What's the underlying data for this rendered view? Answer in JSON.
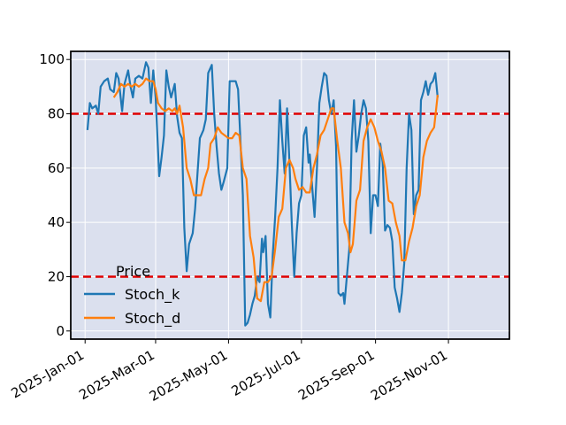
{
  "chart_data": {
    "type": "line",
    "title": "",
    "xlabel": "",
    "ylabel": "",
    "x_ticks": [
      "2025-Jan-01",
      "2025-Mar-01",
      "2025-May-01",
      "2025-Jul-01",
      "2025-Sep-01",
      "2025-Nov-01"
    ],
    "x_tick_dates": [
      "2025-01-01",
      "2025-03-01",
      "2025-05-01",
      "2025-07-01",
      "2025-09-01",
      "2025-11-01"
    ],
    "xlim": [
      "2024-12-20",
      "2025-12-22"
    ],
    "ylim": [
      -3,
      103
    ],
    "y_ticks": [
      0,
      20,
      40,
      60,
      80,
      100
    ],
    "grid": true,
    "legend": {
      "title": "Price",
      "placement": "lower-left"
    },
    "hlines": [
      {
        "value": 80,
        "color": "#e00000",
        "style": "dashed"
      },
      {
        "value": 20,
        "color": "#e00000",
        "style": "dashed"
      }
    ],
    "series": [
      {
        "name": "Stoch_k",
        "color": "#1f77b4",
        "points": [
          [
            "2025-01-03",
            74
          ],
          [
            "2025-01-05",
            84
          ],
          [
            "2025-01-07",
            82
          ],
          [
            "2025-01-10",
            83
          ],
          [
            "2025-01-12",
            80
          ],
          [
            "2025-01-14",
            90
          ],
          [
            "2025-01-17",
            92
          ],
          [
            "2025-01-20",
            93
          ],
          [
            "2025-01-22",
            89
          ],
          [
            "2025-01-25",
            88
          ],
          [
            "2025-01-27",
            95
          ],
          [
            "2025-01-29",
            93
          ],
          [
            "2025-02-01",
            81
          ],
          [
            "2025-02-03",
            91
          ],
          [
            "2025-02-06",
            96
          ],
          [
            "2025-02-08",
            90
          ],
          [
            "2025-02-10",
            86
          ],
          [
            "2025-02-12",
            93
          ],
          [
            "2025-02-15",
            94
          ],
          [
            "2025-02-18",
            93
          ],
          [
            "2025-02-21",
            99
          ],
          [
            "2025-02-23",
            97
          ],
          [
            "2025-02-25",
            84
          ],
          [
            "2025-02-27",
            96
          ],
          [
            "2025-03-01",
            86
          ],
          [
            "2025-03-04",
            57
          ],
          [
            "2025-03-06",
            64
          ],
          [
            "2025-03-08",
            72
          ],
          [
            "2025-03-10",
            96
          ],
          [
            "2025-03-12",
            90
          ],
          [
            "2025-03-14",
            86
          ],
          [
            "2025-03-17",
            91
          ],
          [
            "2025-03-19",
            79
          ],
          [
            "2025-03-21",
            73
          ],
          [
            "2025-03-23",
            71
          ],
          [
            "2025-03-25",
            38
          ],
          [
            "2025-03-27",
            22
          ],
          [
            "2025-03-29",
            32
          ],
          [
            "2025-04-01",
            36
          ],
          [
            "2025-04-03",
            45
          ],
          [
            "2025-04-05",
            58
          ],
          [
            "2025-04-07",
            71
          ],
          [
            "2025-04-10",
            74
          ],
          [
            "2025-04-12",
            78
          ],
          [
            "2025-04-14",
            95
          ],
          [
            "2025-04-17",
            98
          ],
          [
            "2025-04-19",
            80
          ],
          [
            "2025-04-21",
            68
          ],
          [
            "2025-04-23",
            58
          ],
          [
            "2025-04-25",
            52
          ],
          [
            "2025-04-27",
            55
          ],
          [
            "2025-04-30",
            60
          ],
          [
            "2025-05-02",
            92
          ],
          [
            "2025-05-05",
            92
          ],
          [
            "2025-05-07",
            92
          ],
          [
            "2025-05-09",
            89
          ],
          [
            "2025-05-11",
            70
          ],
          [
            "2025-05-13",
            50
          ],
          [
            "2025-05-15",
            2
          ],
          [
            "2025-05-17",
            3
          ],
          [
            "2025-05-19",
            6
          ],
          [
            "2025-05-21",
            10
          ],
          [
            "2025-05-23",
            13
          ],
          [
            "2025-05-25",
            20
          ],
          [
            "2025-05-27",
            18
          ],
          [
            "2025-05-29",
            34
          ],
          [
            "2025-05-30",
            29
          ],
          [
            "2025-06-01",
            35
          ],
          [
            "2025-06-03",
            10
          ],
          [
            "2025-06-05",
            5
          ],
          [
            "2025-06-07",
            28
          ],
          [
            "2025-06-09",
            42
          ],
          [
            "2025-06-11",
            60
          ],
          [
            "2025-06-13",
            85
          ],
          [
            "2025-06-15",
            70
          ],
          [
            "2025-06-17",
            58
          ],
          [
            "2025-06-19",
            82
          ],
          [
            "2025-06-21",
            62
          ],
          [
            "2025-06-23",
            39
          ],
          [
            "2025-06-25",
            20
          ],
          [
            "2025-06-27",
            36
          ],
          [
            "2025-06-29",
            47
          ],
          [
            "2025-07-01",
            50
          ],
          [
            "2025-07-03",
            72
          ],
          [
            "2025-07-05",
            75
          ],
          [
            "2025-07-07",
            62
          ],
          [
            "2025-07-08",
            65
          ],
          [
            "2025-07-10",
            53
          ],
          [
            "2025-07-12",
            42
          ],
          [
            "2025-07-14",
            60
          ],
          [
            "2025-07-16",
            84
          ],
          [
            "2025-07-18",
            90
          ],
          [
            "2025-07-20",
            95
          ],
          [
            "2025-07-22",
            94
          ],
          [
            "2025-07-24",
            85
          ],
          [
            "2025-07-26",
            80
          ],
          [
            "2025-07-28",
            85
          ],
          [
            "2025-07-30",
            68
          ],
          [
            "2025-08-01",
            14
          ],
          [
            "2025-08-03",
            13
          ],
          [
            "2025-08-05",
            14
          ],
          [
            "2025-08-06",
            10
          ],
          [
            "2025-08-08",
            20
          ],
          [
            "2025-08-10",
            30
          ],
          [
            "2025-08-12",
            70
          ],
          [
            "2025-08-14",
            85
          ],
          [
            "2025-08-16",
            66
          ],
          [
            "2025-08-18",
            72
          ],
          [
            "2025-08-20",
            80
          ],
          [
            "2025-08-22",
            85
          ],
          [
            "2025-08-24",
            82
          ],
          [
            "2025-08-26",
            70
          ],
          [
            "2025-08-28",
            36
          ],
          [
            "2025-08-30",
            50
          ],
          [
            "2025-09-01",
            50
          ],
          [
            "2025-09-03",
            46
          ],
          [
            "2025-09-05",
            69
          ],
          [
            "2025-09-07",
            62
          ],
          [
            "2025-09-09",
            37
          ],
          [
            "2025-09-11",
            39
          ],
          [
            "2025-09-13",
            38
          ],
          [
            "2025-09-15",
            33
          ],
          [
            "2025-09-17",
            16
          ],
          [
            "2025-09-19",
            12
          ],
          [
            "2025-09-21",
            7
          ],
          [
            "2025-09-23",
            14
          ],
          [
            "2025-09-25",
            25
          ],
          [
            "2025-09-27",
            60
          ],
          [
            "2025-09-29",
            80
          ],
          [
            "2025-10-01",
            74
          ],
          [
            "2025-10-03",
            43
          ],
          [
            "2025-10-05",
            50
          ],
          [
            "2025-10-07",
            52
          ],
          [
            "2025-10-09",
            85
          ],
          [
            "2025-10-11",
            88
          ],
          [
            "2025-10-13",
            92
          ],
          [
            "2025-10-15",
            87
          ],
          [
            "2025-10-17",
            91
          ],
          [
            "2025-10-19",
            92
          ],
          [
            "2025-10-21",
            95
          ],
          [
            "2025-10-23",
            86
          ]
        ]
      },
      {
        "name": "Stoch_d",
        "color": "#ff7f0e",
        "points": [
          [
            "2025-01-25",
            86
          ],
          [
            "2025-01-28",
            88
          ],
          [
            "2025-01-31",
            91
          ],
          [
            "2025-02-03",
            90
          ],
          [
            "2025-02-06",
            91
          ],
          [
            "2025-02-09",
            90
          ],
          [
            "2025-02-12",
            91
          ],
          [
            "2025-02-15",
            90
          ],
          [
            "2025-02-18",
            91
          ],
          [
            "2025-02-21",
            93
          ],
          [
            "2025-02-24",
            92
          ],
          [
            "2025-02-27",
            92
          ],
          [
            "2025-03-01",
            89
          ],
          [
            "2025-03-03",
            84
          ],
          [
            "2025-03-06",
            82
          ],
          [
            "2025-03-09",
            81
          ],
          [
            "2025-03-12",
            82
          ],
          [
            "2025-03-15",
            81
          ],
          [
            "2025-03-17",
            82
          ],
          [
            "2025-03-19",
            80
          ],
          [
            "2025-03-21",
            83
          ],
          [
            "2025-03-24",
            75
          ],
          [
            "2025-03-27",
            60
          ],
          [
            "2025-03-30",
            56
          ],
          [
            "2025-04-02",
            50
          ],
          [
            "2025-04-05",
            50
          ],
          [
            "2025-04-08",
            50
          ],
          [
            "2025-04-11",
            56
          ],
          [
            "2025-04-14",
            60
          ],
          [
            "2025-04-16",
            69
          ],
          [
            "2025-04-19",
            71
          ],
          [
            "2025-04-22",
            75
          ],
          [
            "2025-04-25",
            73
          ],
          [
            "2025-04-28",
            72
          ],
          [
            "2025-05-01",
            71
          ],
          [
            "2025-05-04",
            71
          ],
          [
            "2025-05-07",
            73
          ],
          [
            "2025-05-10",
            72
          ],
          [
            "2025-05-13",
            60
          ],
          [
            "2025-05-16",
            56
          ],
          [
            "2025-05-19",
            35
          ],
          [
            "2025-05-22",
            27
          ],
          [
            "2025-05-25",
            12
          ],
          [
            "2025-05-28",
            11
          ],
          [
            "2025-05-31",
            18
          ],
          [
            "2025-06-03",
            18
          ],
          [
            "2025-06-06",
            20
          ],
          [
            "2025-06-09",
            30
          ],
          [
            "2025-06-12",
            42
          ],
          [
            "2025-06-15",
            45
          ],
          [
            "2025-06-18",
            60
          ],
          [
            "2025-06-21",
            63
          ],
          [
            "2025-06-24",
            60
          ],
          [
            "2025-06-26",
            56
          ],
          [
            "2025-06-29",
            52
          ],
          [
            "2025-07-02",
            53
          ],
          [
            "2025-07-05",
            51
          ],
          [
            "2025-07-08",
            51
          ],
          [
            "2025-07-11",
            60
          ],
          [
            "2025-07-14",
            65
          ],
          [
            "2025-07-17",
            72
          ],
          [
            "2025-07-20",
            74
          ],
          [
            "2025-07-23",
            78
          ],
          [
            "2025-07-26",
            82
          ],
          [
            "2025-07-28",
            82
          ],
          [
            "2025-07-31",
            70
          ],
          [
            "2025-08-03",
            60
          ],
          [
            "2025-08-06",
            40
          ],
          [
            "2025-08-09",
            36
          ],
          [
            "2025-08-11",
            29
          ],
          [
            "2025-08-13",
            32
          ],
          [
            "2025-08-16",
            48
          ],
          [
            "2025-08-19",
            52
          ],
          [
            "2025-08-22",
            70
          ],
          [
            "2025-08-25",
            75
          ],
          [
            "2025-08-28",
            78
          ],
          [
            "2025-08-31",
            75
          ],
          [
            "2025-09-03",
            70
          ],
          [
            "2025-09-06",
            66
          ],
          [
            "2025-09-09",
            60
          ],
          [
            "2025-09-12",
            48
          ],
          [
            "2025-09-15",
            47
          ],
          [
            "2025-09-18",
            40
          ],
          [
            "2025-09-21",
            35
          ],
          [
            "2025-09-23",
            26
          ],
          [
            "2025-09-26",
            26
          ],
          [
            "2025-09-29",
            33
          ],
          [
            "2025-10-02",
            38
          ],
          [
            "2025-10-05",
            46
          ],
          [
            "2025-10-08",
            50
          ],
          [
            "2025-10-11",
            64
          ],
          [
            "2025-10-14",
            70
          ],
          [
            "2025-10-17",
            73
          ],
          [
            "2025-10-20",
            75
          ],
          [
            "2025-10-23",
            87
          ]
        ]
      }
    ]
  }
}
